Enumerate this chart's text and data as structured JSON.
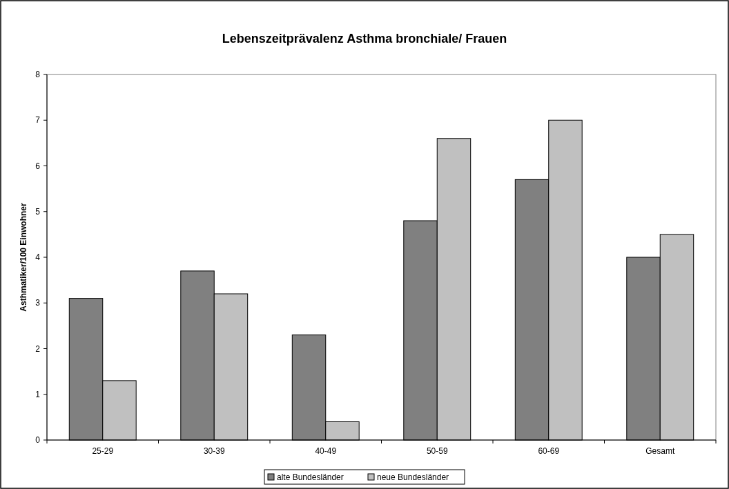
{
  "chart_data": {
    "type": "bar",
    "title": "Lebenszeitprävalenz Asthma bronchiale/ Frauen",
    "ylabel": "Asthmatiker/100 Einwohner",
    "categories": [
      "25-29",
      "30-39",
      "40-49",
      "50-59",
      "60-69",
      "Gesamt"
    ],
    "series": [
      {
        "name": "alte Bundesländer",
        "color": "#808080",
        "values": [
          3.1,
          3.7,
          2.3,
          4.8,
          5.7,
          4.0
        ]
      },
      {
        "name": "neue Bundesländer",
        "color": "#c0c0c0",
        "values": [
          1.3,
          3.2,
          0.4,
          6.6,
          7.0,
          4.5
        ]
      }
    ],
    "ylim": [
      0,
      8
    ],
    "yticks": [
      0,
      1,
      2,
      3,
      4,
      5,
      6,
      7,
      8
    ],
    "legend": "bottom"
  }
}
